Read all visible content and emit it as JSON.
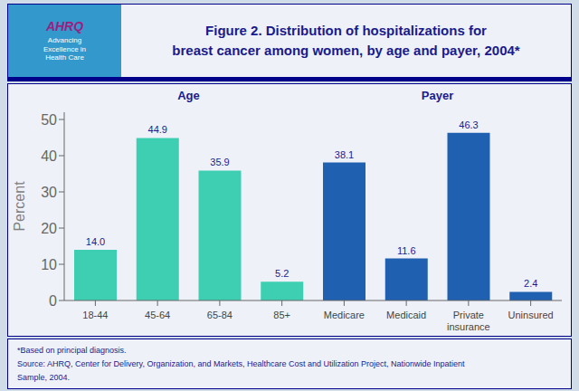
{
  "chart_data": {
    "type": "bar",
    "title": "Figure 2. Distribution of hospitalizations for\nbreast cancer among women, by age and payer, 2004*",
    "categories": [
      "18-44",
      "45-64",
      "65-84",
      "85+",
      "Medicare",
      "Medicaid",
      "Private\ninsurance",
      "Uninsured"
    ],
    "values": [
      14.0,
      44.9,
      35.9,
      5.2,
      38.1,
      11.6,
      46.3,
      2.4
    ],
    "value_labels": [
      "14.0",
      "44.9",
      "35.9",
      "5.2",
      "38.1",
      "11.6",
      "46.3",
      "2.4"
    ],
    "colors": [
      "#3ecfb2",
      "#3ecfb2",
      "#3ecfb2",
      "#3ecfb2",
      "#2060b0",
      "#2060b0",
      "#2060b0",
      "#2060b0"
    ],
    "y_label": "Percent",
    "ylim": [
      0,
      52
    ],
    "yticks": [
      0,
      10,
      20,
      30,
      40,
      50
    ],
    "grid": false,
    "data_labels": true,
    "annotations": [
      "AHRQ",
      "Advancing\nExcellence in\nHealth Care",
      "Age",
      "Payer"
    ],
    "footnotes": [
      "*Based on principal diagnosis.",
      "Source: AHRQ, Center for Delivery, Organization, and Markets, Healthcare Cost and Utilization Project, Nationwide Inpatient",
      "Sample, 2004."
    ]
  }
}
